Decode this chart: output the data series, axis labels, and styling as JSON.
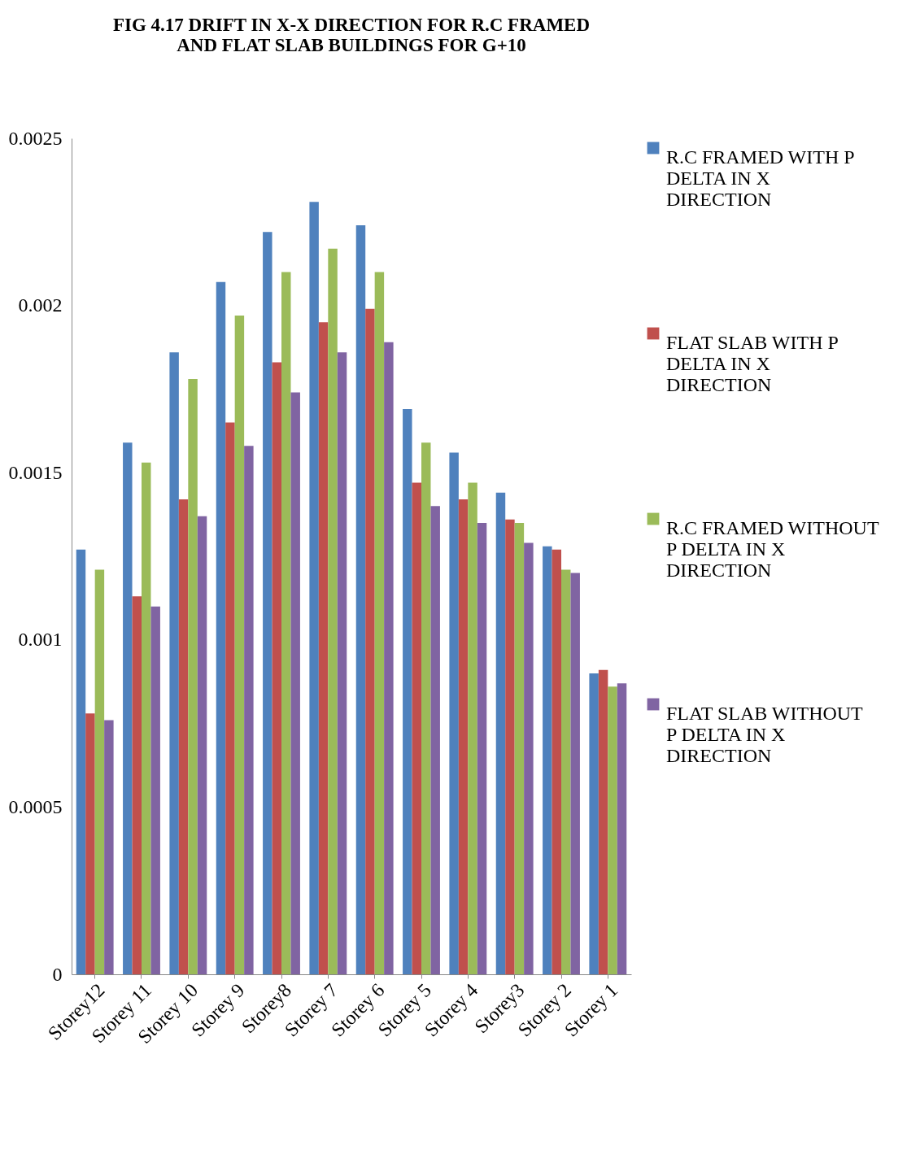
{
  "chart_data": {
    "type": "bar",
    "title": "FIG 4.17  DRIFT IN X-X DIRECTION FOR R.C FRAMED AND FLAT SLAB BUILDINGS FOR G+10",
    "categories": [
      "Storey12",
      "Storey 11",
      "Storey 10",
      "Storey 9",
      "Storey8",
      "Storey 7",
      "Storey 6",
      "Storey 5",
      "Storey 4",
      "Storey3",
      "Storey 2",
      "Storey 1"
    ],
    "series": [
      {
        "name": "R.C FRAMED WITH P DELTA IN X DIRECTION",
        "color": "#4f81bd",
        "values": [
          0.00127,
          0.00159,
          0.00186,
          0.00207,
          0.00222,
          0.00231,
          0.00224,
          0.00169,
          0.00156,
          0.00144,
          0.00128,
          0.0009
        ]
      },
      {
        "name": "FLAT SLAB WITH P DELTA IN X DIRECTION",
        "color": "#c0504d",
        "values": [
          0.00078,
          0.00113,
          0.00142,
          0.00165,
          0.00183,
          0.00195,
          0.00199,
          0.00147,
          0.00142,
          0.00136,
          0.00127,
          0.00091
        ]
      },
      {
        "name": "R.C FRAMED WITHOUT P DELTA IN X DIRECTION",
        "color": "#9bbb59",
        "values": [
          0.00121,
          0.00153,
          0.00178,
          0.00197,
          0.0021,
          0.00217,
          0.0021,
          0.00159,
          0.00147,
          0.00135,
          0.00121,
          0.00086
        ]
      },
      {
        "name": "FLAT SLAB WITHOUT P DELTA IN X DIRECTION",
        "color": "#8064a2",
        "values": [
          0.00076,
          0.0011,
          0.00137,
          0.00158,
          0.00174,
          0.00186,
          0.00189,
          0.0014,
          0.00135,
          0.00129,
          0.0012,
          0.00087
        ]
      }
    ],
    "ylim": [
      0,
      0.0025
    ],
    "yticks": [
      0,
      0.0005,
      0.001,
      0.0015,
      0.002,
      0.0025
    ],
    "grid": false,
    "legend": "right"
  }
}
